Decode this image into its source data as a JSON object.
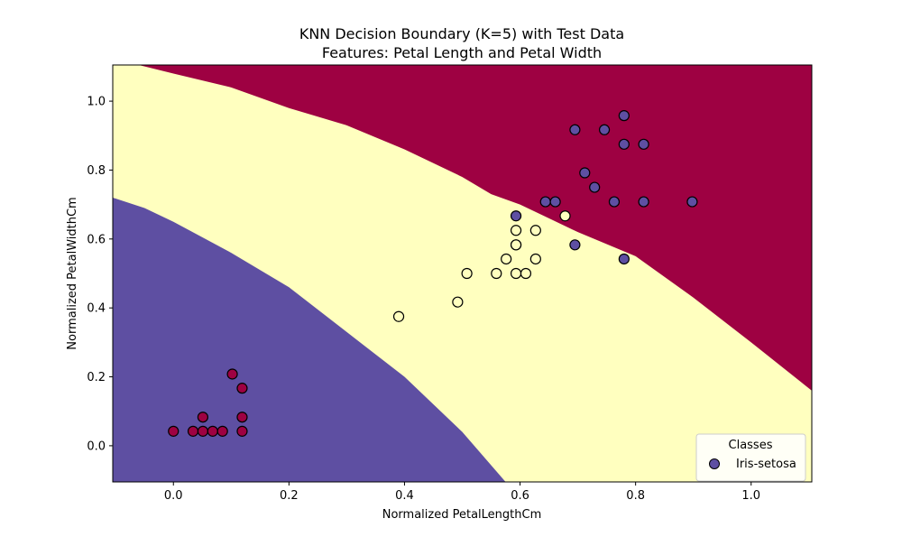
{
  "chart_data": {
    "type": "scatter",
    "title": "KNN Decision Boundary (K=5) with Test Data",
    "subtitle": "Features: Petal Length and Petal Width",
    "xlabel": "Normalized PetalLengthCm",
    "ylabel": "Normalized PetalWidthCm",
    "xlim": [
      -0.105,
      1.105
    ],
    "ylim": [
      -0.105,
      1.105
    ],
    "x_ticks": [
      0.0,
      0.2,
      0.4,
      0.6,
      0.8,
      1.0
    ],
    "y_ticks": [
      0.0,
      0.2,
      0.4,
      0.6,
      0.8,
      1.0
    ],
    "x_tick_labels": [
      "0.0",
      "0.2",
      "0.4",
      "0.6",
      "0.8",
      "1.0"
    ],
    "y_tick_labels": [
      "0.0",
      "0.2",
      "0.4",
      "0.6",
      "0.8",
      "1.0"
    ],
    "grid": false,
    "legend": {
      "title": "Classes",
      "placement": "lower-right",
      "entries": [
        "Iris-setosa"
      ]
    },
    "colors": {
      "region_red": "#9e0142",
      "region_yellow": "#ffffbf",
      "region_purple": "#5e4fa2",
      "point_edge": "#000000"
    },
    "decision_regions": {
      "purple_yellow_boundary": [
        [
          -0.105,
          0.72
        ],
        [
          -0.05,
          0.69
        ],
        [
          0.0,
          0.65
        ],
        [
          0.1,
          0.56
        ],
        [
          0.2,
          0.46
        ],
        [
          0.3,
          0.33
        ],
        [
          0.4,
          0.2
        ],
        [
          0.5,
          0.04
        ],
        [
          0.575,
          -0.105
        ]
      ],
      "yellow_red_boundary": [
        [
          -0.06,
          1.105
        ],
        [
          0.0,
          1.08
        ],
        [
          0.1,
          1.04
        ],
        [
          0.2,
          0.98
        ],
        [
          0.3,
          0.93
        ],
        [
          0.4,
          0.86
        ],
        [
          0.5,
          0.78
        ],
        [
          0.55,
          0.73
        ],
        [
          0.6,
          0.7
        ],
        [
          0.65,
          0.66
        ],
        [
          0.7,
          0.62
        ],
        [
          0.8,
          0.55
        ],
        [
          0.9,
          0.43
        ],
        [
          1.0,
          0.3
        ],
        [
          1.105,
          0.16
        ]
      ]
    },
    "series": [
      {
        "class_color": "#9e0142",
        "points": [
          [
            0.0,
            0.042
          ],
          [
            0.034,
            0.042
          ],
          [
            0.051,
            0.042
          ],
          [
            0.068,
            0.042
          ],
          [
            0.085,
            0.042
          ],
          [
            0.119,
            0.042
          ],
          [
            0.051,
            0.083
          ],
          [
            0.119,
            0.083
          ],
          [
            0.119,
            0.167
          ],
          [
            0.102,
            0.208
          ]
        ]
      },
      {
        "class_color": "#ffffbf",
        "points": [
          [
            0.39,
            0.375
          ],
          [
            0.492,
            0.417
          ],
          [
            0.508,
            0.5
          ],
          [
            0.559,
            0.5
          ],
          [
            0.593,
            0.5
          ],
          [
            0.61,
            0.5
          ],
          [
            0.576,
            0.542
          ],
          [
            0.627,
            0.542
          ],
          [
            0.593,
            0.583
          ],
          [
            0.593,
            0.583
          ],
          [
            0.593,
            0.625
          ],
          [
            0.627,
            0.625
          ],
          [
            0.678,
            0.667
          ]
        ]
      },
      {
        "class_color": "#5e4fa2",
        "points": [
          [
            0.593,
            0.667
          ],
          [
            0.644,
            0.708
          ],
          [
            0.661,
            0.708
          ],
          [
            0.695,
            0.583
          ],
          [
            0.78,
            0.542
          ],
          [
            0.712,
            0.792
          ],
          [
            0.729,
            0.75
          ],
          [
            0.763,
            0.708
          ],
          [
            0.814,
            0.708
          ],
          [
            0.898,
            0.708
          ],
          [
            0.78,
            0.875
          ],
          [
            0.814,
            0.875
          ],
          [
            0.695,
            0.917
          ],
          [
            0.746,
            0.917
          ],
          [
            0.78,
            0.958
          ]
        ]
      }
    ]
  }
}
